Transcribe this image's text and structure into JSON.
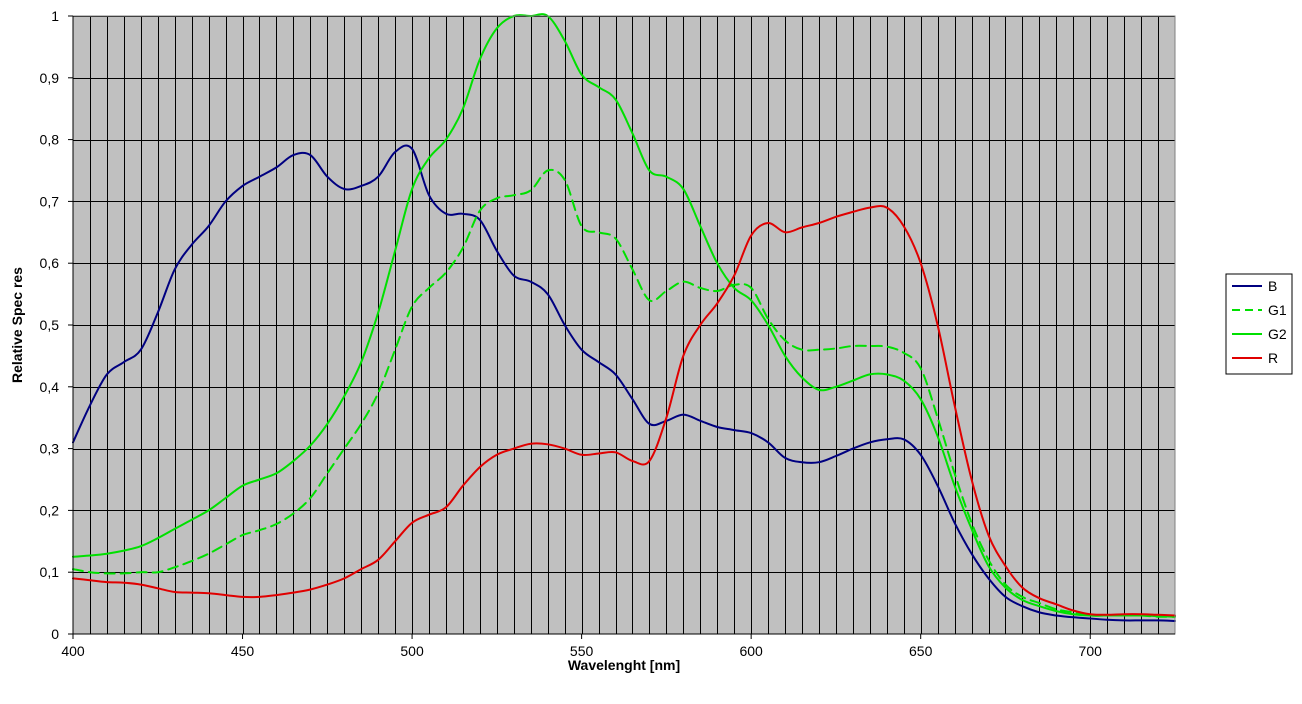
{
  "chart_data": {
    "type": "line",
    "title": "",
    "xlabel": "Wavelenght [nm]",
    "ylabel": "Relative Spec res",
    "xlim": [
      400,
      725
    ],
    "ylim": [
      0,
      1
    ],
    "x_ticks": [
      400,
      450,
      500,
      550,
      600,
      650,
      700
    ],
    "x_tick_labels": [
      "400",
      "450",
      "500",
      "550",
      "600",
      "650",
      "700"
    ],
    "y_ticks": [
      0,
      0.1,
      0.2,
      0.3,
      0.4,
      0.5,
      0.6,
      0.7,
      0.8,
      0.9,
      1
    ],
    "y_tick_labels": [
      "0",
      "0,1",
      "0,2",
      "0,3",
      "0,4",
      "0,5",
      "0,6",
      "0,7",
      "0,8",
      "0,9",
      "1"
    ],
    "grid": true,
    "plot_background": "#c0c0c0",
    "legend_position": "right",
    "x": [
      400,
      405,
      410,
      415,
      420,
      425,
      430,
      435,
      440,
      445,
      450,
      455,
      460,
      465,
      470,
      475,
      480,
      485,
      490,
      495,
      500,
      505,
      510,
      515,
      520,
      525,
      530,
      535,
      540,
      545,
      550,
      555,
      560,
      565,
      570,
      575,
      580,
      585,
      590,
      595,
      600,
      605,
      610,
      615,
      620,
      625,
      630,
      635,
      640,
      645,
      650,
      655,
      660,
      665,
      670,
      675,
      680,
      685,
      690,
      695,
      700,
      705,
      710,
      715,
      720,
      725
    ],
    "series": [
      {
        "name": "B",
        "color": "#000080",
        "dashed": false,
        "values": [
          0.31,
          0.37,
          0.42,
          0.44,
          0.46,
          0.52,
          0.59,
          0.63,
          0.66,
          0.7,
          0.725,
          0.74,
          0.755,
          0.775,
          0.775,
          0.74,
          0.72,
          0.725,
          0.74,
          0.78,
          0.785,
          0.71,
          0.68,
          0.68,
          0.67,
          0.62,
          0.58,
          0.57,
          0.55,
          0.5,
          0.46,
          0.44,
          0.42,
          0.38,
          0.34,
          0.345,
          0.355,
          0.345,
          0.335,
          0.33,
          0.325,
          0.31,
          0.285,
          0.278,
          0.278,
          0.288,
          0.3,
          0.31,
          0.315,
          0.315,
          0.29,
          0.24,
          0.18,
          0.13,
          0.09,
          0.06,
          0.045,
          0.035,
          0.03,
          0.027,
          0.025,
          0.023,
          0.022,
          0.022,
          0.022,
          0.021
        ]
      },
      {
        "name": "G1",
        "color": "#00e000",
        "dashed": true,
        "values": [
          0.105,
          0.1,
          0.098,
          0.098,
          0.1,
          0.1,
          0.108,
          0.118,
          0.13,
          0.145,
          0.16,
          0.168,
          0.178,
          0.195,
          0.22,
          0.26,
          0.3,
          0.34,
          0.39,
          0.46,
          0.53,
          0.56,
          0.585,
          0.625,
          0.685,
          0.705,
          0.71,
          0.718,
          0.75,
          0.735,
          0.66,
          0.65,
          0.64,
          0.59,
          0.54,
          0.555,
          0.57,
          0.56,
          0.555,
          0.565,
          0.56,
          0.51,
          0.475,
          0.46,
          0.46,
          0.462,
          0.466,
          0.466,
          0.465,
          0.455,
          0.43,
          0.35,
          0.26,
          0.18,
          0.12,
          0.08,
          0.06,
          0.05,
          0.04,
          0.035,
          0.03,
          0.03,
          0.03,
          0.03,
          0.028,
          0.028
        ]
      },
      {
        "name": "G2",
        "color": "#00e000",
        "dashed": false,
        "values": [
          0.125,
          0.127,
          0.13,
          0.135,
          0.142,
          0.155,
          0.17,
          0.185,
          0.2,
          0.22,
          0.24,
          0.25,
          0.26,
          0.28,
          0.305,
          0.34,
          0.385,
          0.44,
          0.52,
          0.62,
          0.72,
          0.77,
          0.8,
          0.85,
          0.93,
          0.98,
          1.0,
          1.0,
          1.0,
          0.96,
          0.905,
          0.885,
          0.865,
          0.81,
          0.75,
          0.74,
          0.72,
          0.66,
          0.6,
          0.56,
          0.54,
          0.5,
          0.45,
          0.415,
          0.395,
          0.4,
          0.41,
          0.42,
          0.42,
          0.41,
          0.38,
          0.32,
          0.24,
          0.17,
          0.11,
          0.075,
          0.055,
          0.045,
          0.037,
          0.032,
          0.03,
          0.03,
          0.03,
          0.03,
          0.029,
          0.028
        ]
      },
      {
        "name": "R",
        "color": "#e00000",
        "dashed": false,
        "values": [
          0.09,
          0.087,
          0.084,
          0.083,
          0.08,
          0.074,
          0.068,
          0.067,
          0.066,
          0.063,
          0.06,
          0.06,
          0.063,
          0.067,
          0.072,
          0.08,
          0.09,
          0.105,
          0.12,
          0.15,
          0.18,
          0.193,
          0.205,
          0.24,
          0.27,
          0.29,
          0.3,
          0.308,
          0.307,
          0.3,
          0.29,
          0.292,
          0.294,
          0.28,
          0.28,
          0.35,
          0.45,
          0.5,
          0.535,
          0.58,
          0.645,
          0.665,
          0.65,
          0.658,
          0.665,
          0.675,
          0.683,
          0.69,
          0.69,
          0.66,
          0.6,
          0.5,
          0.37,
          0.25,
          0.16,
          0.11,
          0.075,
          0.058,
          0.048,
          0.038,
          0.032,
          0.031,
          0.032,
          0.032,
          0.031,
          0.03
        ]
      }
    ]
  }
}
